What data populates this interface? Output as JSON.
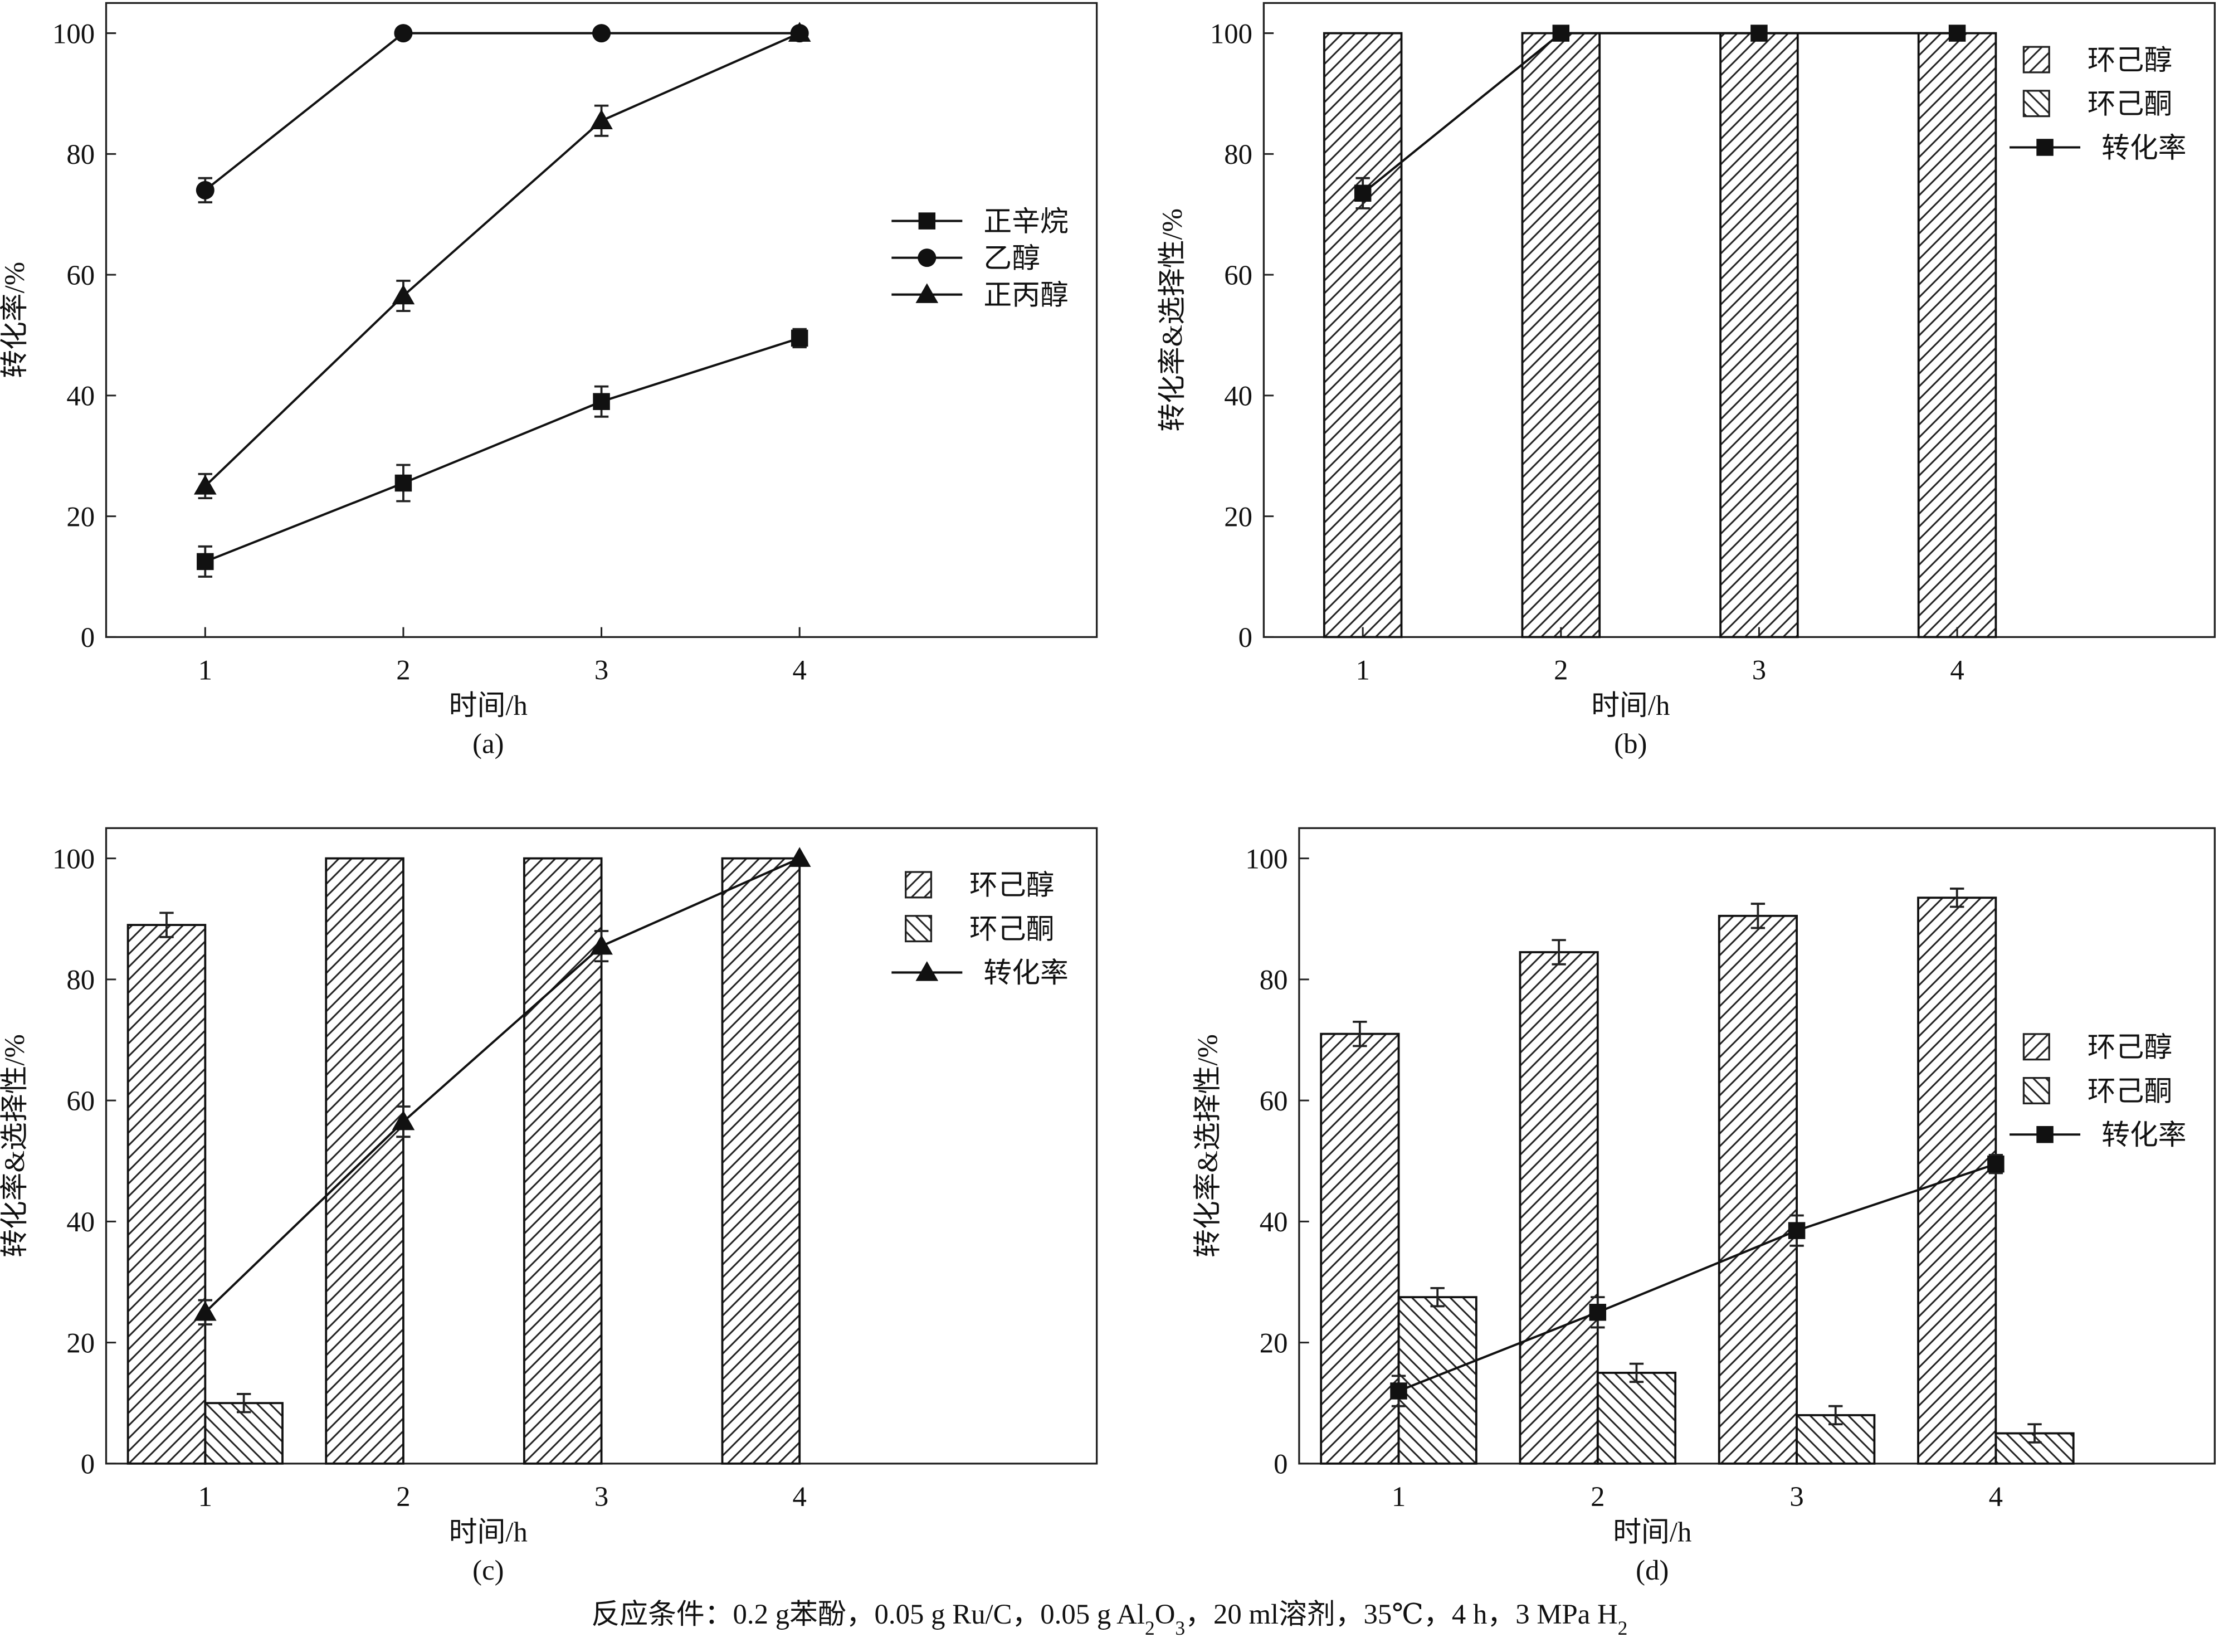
{
  "chart_data": [
    {
      "type": "line",
      "panel": "(a)",
      "x_label": "时间/h",
      "y_label": "转化率/%",
      "xlim": [
        0.5,
        5.5
      ],
      "xticks": [
        1,
        2,
        3,
        4
      ],
      "ylim": [
        0,
        105
      ],
      "yticks": [
        0,
        20,
        40,
        60,
        80,
        100
      ],
      "legend": "center right",
      "series": [
        {
          "name": "正辛烷",
          "type": "line",
          "marker": "square",
          "color": "#111",
          "x": [
            1,
            2,
            3,
            4
          ],
          "values": [
            12.5,
            25.5,
            39,
            49.5
          ],
          "errors": [
            2.5,
            3,
            2.5,
            1.5
          ]
        },
        {
          "name": "乙醇",
          "type": "line",
          "marker": "circle",
          "color": "#111",
          "x": [
            1,
            2,
            3,
            4
          ],
          "values": [
            74,
            100,
            100,
            100
          ],
          "errors": [
            2,
            null,
            null,
            null
          ]
        },
        {
          "name": "正丙醇",
          "type": "line",
          "marker": "triangle",
          "color": "#111",
          "x": [
            1,
            2,
            3,
            4
          ],
          "values": [
            25,
            56.5,
            85.5,
            100
          ],
          "errors": [
            2,
            2.5,
            2.5,
            null
          ]
        }
      ]
    },
    {
      "type": "bar",
      "panel": "(b)",
      "x_label": "时间/h",
      "y_label": "转化率&选择性/%",
      "xlim": [
        0.5,
        5.3
      ],
      "xticks": [
        1,
        2,
        3,
        4
      ],
      "ylim": [
        0,
        105
      ],
      "yticks": [
        0,
        20,
        40,
        60,
        80,
        100
      ],
      "legend": "upper right",
      "series": [
        {
          "name": "环己醇",
          "type": "bar",
          "hatch": "/",
          "color": "#111",
          "x": [
            1,
            2,
            3,
            4
          ],
          "values": [
            100,
            100,
            100,
            100
          ],
          "errors": [
            null,
            null,
            null,
            null
          ]
        },
        {
          "name": "环己酮",
          "type": "bar",
          "hatch": "\\",
          "color": "#111",
          "x": [
            1,
            2,
            3,
            4
          ],
          "values": [
            null,
            null,
            null,
            null
          ],
          "errors": [
            null,
            null,
            null,
            null
          ]
        },
        {
          "name": "转化率",
          "type": "line",
          "marker": "square",
          "color": "#111",
          "x": [
            1,
            2,
            3,
            4
          ],
          "values": [
            73.5,
            100,
            100,
            100
          ],
          "errors": [
            2.5,
            null,
            null,
            null
          ]
        }
      ]
    },
    {
      "type": "bar",
      "panel": "(c)",
      "x_label": "时间/h",
      "y_label": "转化率&选择性/%",
      "xlim": [
        0.5,
        5.5
      ],
      "xticks": [
        1,
        2,
        3,
        4
      ],
      "ylim": [
        0,
        105
      ],
      "yticks": [
        0,
        20,
        40,
        60,
        80,
        100
      ],
      "legend": "upper right",
      "series": [
        {
          "name": "环己醇",
          "type": "bar",
          "hatch": "/",
          "color": "#111",
          "x": [
            1,
            2,
            3,
            4
          ],
          "values": [
            89,
            100,
            100,
            100
          ],
          "errors": [
            2,
            null,
            null,
            null
          ]
        },
        {
          "name": "环己酮",
          "type": "bar",
          "hatch": "\\",
          "color": "#111",
          "x": [
            1,
            2,
            3,
            4
          ],
          "values": [
            10,
            null,
            null,
            null
          ],
          "errors": [
            1.5,
            null,
            null,
            null
          ]
        },
        {
          "name": "转化率",
          "type": "line",
          "marker": "triangle",
          "color": "#111",
          "x": [
            1,
            2,
            3,
            4
          ],
          "values": [
            25,
            56.5,
            85.5,
            100
          ],
          "errors": [
            2,
            2.5,
            2.5,
            null
          ]
        }
      ]
    },
    {
      "type": "bar",
      "panel": "(d)",
      "x_label": "时间/h",
      "y_label": "转化率&选择性/%",
      "xlim": [
        0.5,
        5.1
      ],
      "xticks": [
        1,
        2,
        3,
        4
      ],
      "ylim": [
        0,
        105
      ],
      "yticks": [
        0,
        20,
        40,
        60,
        80,
        100
      ],
      "legend": "center right",
      "series": [
        {
          "name": "环己醇",
          "type": "bar",
          "hatch": "/",
          "color": "#111",
          "x": [
            1,
            2,
            3,
            4
          ],
          "values": [
            71,
            84.5,
            90.5,
            93.5
          ],
          "errors": [
            2,
            2,
            2,
            1.5
          ]
        },
        {
          "name": "环己酮",
          "type": "bar",
          "hatch": "\\",
          "color": "#111",
          "x": [
            1,
            2,
            3,
            4
          ],
          "values": [
            27.5,
            15,
            8,
            5
          ],
          "errors": [
            1.5,
            1.5,
            1.5,
            1.5
          ]
        },
        {
          "name": "转化率",
          "type": "line",
          "marker": "square",
          "color": "#111",
          "x": [
            1,
            2,
            3,
            4
          ],
          "values": [
            12,
            25,
            38.5,
            49.5
          ],
          "errors": [
            2.5,
            2.5,
            2.5,
            1.5
          ]
        }
      ]
    }
  ],
  "caption": [
    "反应条件：0.2 g苯酚，0.05 g Ru/C，0.05 g Al",
    "2",
    "O",
    "3",
    "，20 ml溶剂，35℃，4 h，3 MPa H",
    "2"
  ]
}
